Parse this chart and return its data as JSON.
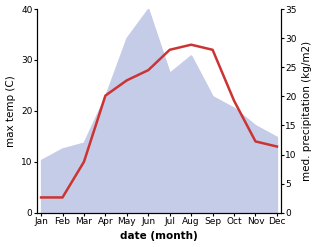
{
  "months": [
    "Jan",
    "Feb",
    "Mar",
    "Apr",
    "May",
    "Jun",
    "Jul",
    "Aug",
    "Sep",
    "Oct",
    "Nov",
    "Dec"
  ],
  "temperature": [
    3,
    3,
    10,
    23,
    26,
    28,
    32,
    33,
    32,
    22,
    14,
    13
  ],
  "precipitation": [
    9,
    11,
    12,
    20,
    30,
    35,
    24,
    27,
    20,
    18,
    15,
    13
  ],
  "temp_color": "#cc3333",
  "precip_fill_color": "#c5cce8",
  "temp_ylim": [
    0,
    40
  ],
  "precip_ylim": [
    0,
    35
  ],
  "temp_yticks": [
    0,
    10,
    20,
    30,
    40
  ],
  "precip_yticks": [
    0,
    5,
    10,
    15,
    20,
    25,
    30,
    35
  ],
  "xlabel": "date (month)",
  "ylabel_left": "max temp (C)",
  "ylabel_right": "med. precipitation (kg/m2)",
  "background_color": "#ffffff",
  "label_fontsize": 7.5,
  "tick_fontsize": 6.5
}
